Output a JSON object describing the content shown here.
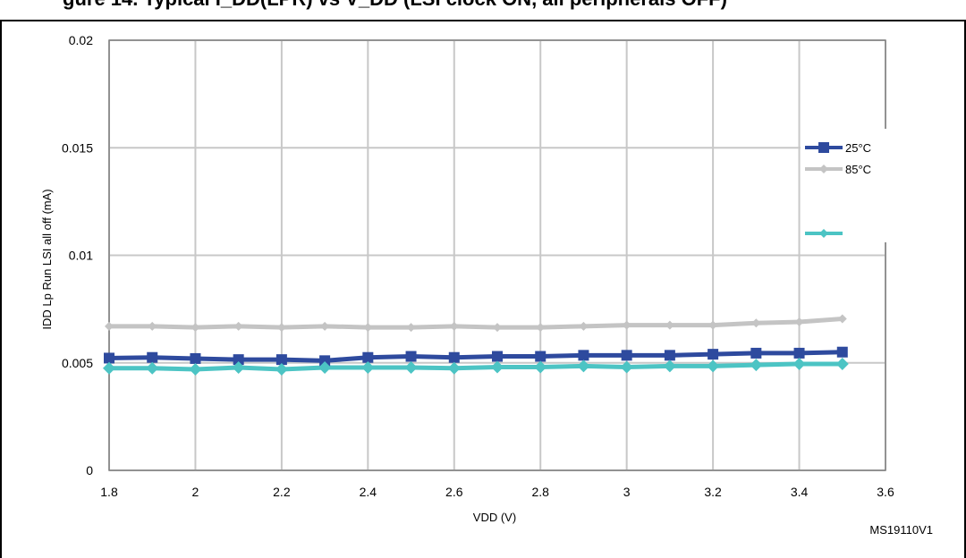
{
  "header_fragment": "gure 14. Typical I_DD(LPR) vs V_DD (LSI clock ON, all peripherals OFF)",
  "figure_id": "MS19110V1",
  "chart_data": {
    "type": "line",
    "xlabel": "VDD (V)",
    "ylabel": "IDD Lp Run  LSI all off  (mA)",
    "xlim": [
      1.8,
      3.6
    ],
    "ylim": [
      0,
      0.02
    ],
    "x_ticks": [
      "1.8",
      "2",
      "2.2",
      "2.4",
      "2.6",
      "2.8",
      "3",
      "3.2",
      "3.4",
      "3.6"
    ],
    "y_ticks": [
      "0",
      "0.005",
      "0.01",
      "0.015",
      "0.02"
    ],
    "grid": true,
    "legend_position": "right",
    "x": [
      1.8,
      1.9,
      2.0,
      2.1,
      2.2,
      2.3,
      2.4,
      2.5,
      2.6,
      2.7,
      2.8,
      2.9,
      3.0,
      3.1,
      3.2,
      3.3,
      3.4,
      3.5
    ],
    "series": [
      {
        "name": "25°C",
        "color": "#2e4a9e",
        "marker": "square",
        "values": [
          0.00522,
          0.00525,
          0.0052,
          0.00515,
          0.00515,
          0.0051,
          0.00525,
          0.0053,
          0.00525,
          0.0053,
          0.0053,
          0.00535,
          0.00535,
          0.00535,
          0.0054,
          0.00545,
          0.00545,
          0.0055
        ]
      },
      {
        "name": "85°C",
        "color": "#c4c4c4",
        "marker": "diamond",
        "values": [
          0.0067,
          0.0067,
          0.00665,
          0.0067,
          0.00665,
          0.0067,
          0.00665,
          0.00665,
          0.0067,
          0.00665,
          0.00665,
          0.0067,
          0.00675,
          0.00675,
          0.00675,
          0.00685,
          0.0069,
          0.00705
        ]
      },
      {
        "name": "",
        "color": "#4cc4c4",
        "marker": "diamond",
        "values": [
          0.00475,
          0.00475,
          0.0047,
          0.00478,
          0.0047,
          0.00478,
          0.00478,
          0.00478,
          0.00475,
          0.0048,
          0.0048,
          0.00485,
          0.0048,
          0.00485,
          0.00485,
          0.0049,
          0.00495,
          0.00495
        ]
      }
    ]
  }
}
